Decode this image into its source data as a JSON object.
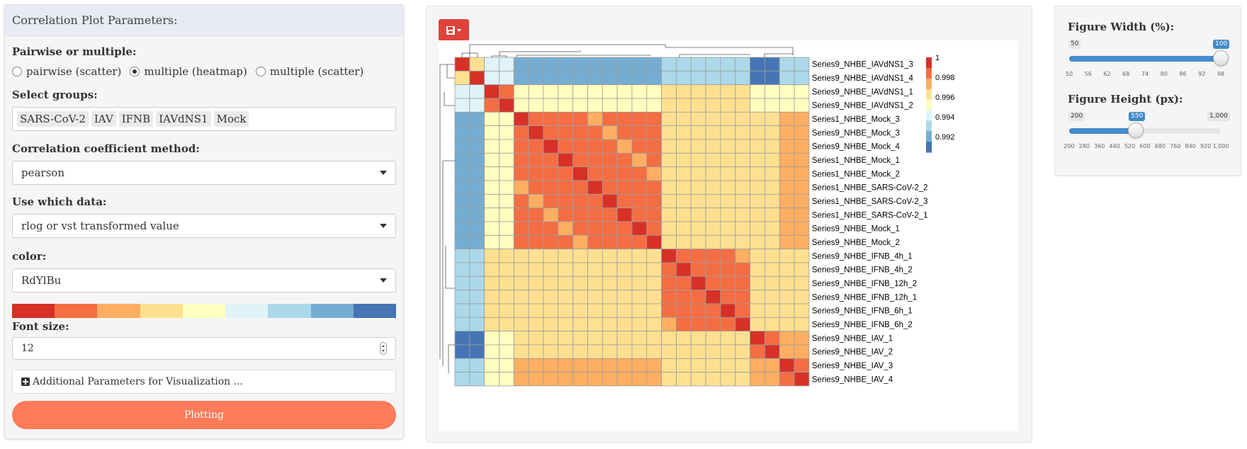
{
  "left_panel": {
    "title": "Correlation Plot Parameters:",
    "pairwise": {
      "label": "Pairwise or multiple:",
      "options": [
        "pairwise (scatter)",
        "multiple (heatmap)",
        "multiple (scatter)"
      ],
      "selected_index": 1
    },
    "groups": {
      "label": "Select groups:",
      "tags": [
        "SARS-CoV-2",
        "IAV",
        "IFNB",
        "IAVdNS1",
        "Mock"
      ]
    },
    "method": {
      "label": "Correlation coefficient method:",
      "value": "pearson"
    },
    "data_source": {
      "label": "Use which data:",
      "value": "rlog or vst transformed value"
    },
    "color": {
      "label": "color:",
      "value": "RdYlBu",
      "swatches": [
        "#d73027",
        "#f46d43",
        "#fdae61",
        "#fee090",
        "#ffffbf",
        "#e0f3f8",
        "#abd9e9",
        "#74add1",
        "#4575b4"
      ]
    },
    "font_size": {
      "label": "Font size:",
      "value": "12"
    },
    "additional_label": "Additional Parameters for Visualization ...",
    "plot_button": "Plotting"
  },
  "heatmap": {
    "rows": [
      "Series9_NHBE_IAVdNS1_3",
      "Series9_NHBE_IAVdNS1_4",
      "Series9_NHBE_IAVdNS1_1",
      "Series9_NHBE_IAVdNS1_2",
      "Series1_NHBE_Mock_3",
      "Series9_NHBE_Mock_3",
      "Series9_NHBE_Mock_4",
      "Series1_NHBE_Mock_1",
      "Series1_NHBE_Mock_2",
      "Series1_NHBE_SARS-CoV-2_2",
      "Series1_NHBE_SARS-CoV-2_3",
      "Series1_NHBE_SARS-CoV-2_1",
      "Series9_NHBE_Mock_1",
      "Series9_NHBE_Mock_2",
      "Series9_NHBE_IFNB_4h_1",
      "Series9_NHBE_IFNB_4h_2",
      "Series9_NHBE_IFNB_12h_2",
      "Series9_NHBE_IFNB_12h_1",
      "Series9_NHBE_IFNB_6h_1",
      "Series9_NHBE_IFNB_6h_2",
      "Series9_NHBE_IAV_1",
      "Series9_NHBE_IAV_2",
      "Series9_NHBE_IAV_3",
      "Series9_NHBE_IAV_4"
    ],
    "legend_ticks": [
      "1",
      "0.998",
      "0.996",
      "0.994",
      "0.992"
    ],
    "legend_colors": [
      "#d73027",
      "#f46d43",
      "#fdae61",
      "#fee090",
      "#ffffbf",
      "#e0f3f8",
      "#abd9e9",
      "#74add1",
      "#4575b4"
    ]
  },
  "right_panel": {
    "width": {
      "label": "Figure Width (%):",
      "min_label": "50",
      "max_label": "100",
      "value": 100,
      "min": 50,
      "max": 100,
      "ticks": [
        "50",
        "56",
        "62",
        "68",
        "74",
        "80",
        "86",
        "92",
        "98"
      ]
    },
    "height": {
      "label": "Figure Height (px):",
      "min_label": "200",
      "max_label": "1,000",
      "value_label": "550",
      "value": 550,
      "min": 200,
      "max": 1000,
      "ticks": [
        "200",
        "280",
        "360",
        "440",
        "520",
        "600",
        "680",
        "760",
        "840",
        "920",
        "1,000"
      ]
    }
  }
}
